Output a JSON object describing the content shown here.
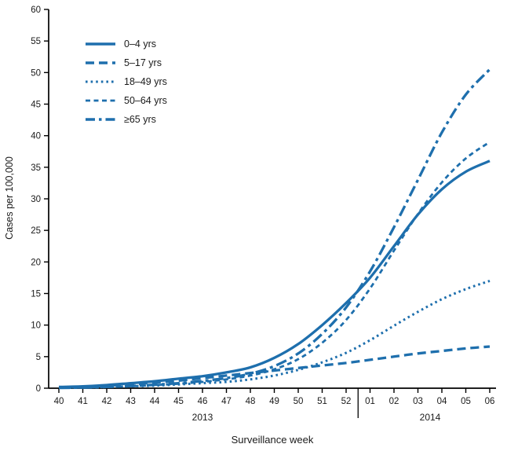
{
  "chart_data": {
    "type": "line",
    "title": "",
    "xlabel": "Surveillance week",
    "ylabel": "Cases per 100,000",
    "x_ticklabels": [
      "40",
      "41",
      "42",
      "43",
      "44",
      "45",
      "46",
      "47",
      "48",
      "49",
      "50",
      "51",
      "52",
      "01",
      "02",
      "03",
      "04",
      "05",
      "06"
    ],
    "year_groups": {
      "left": "2013",
      "right": "2014"
    },
    "ylim": [
      0,
      60
    ],
    "ytick_step": 5,
    "line_color": "#1e6fad",
    "axis_color": "#000000",
    "divider_after_index": 12,
    "legend_position": "top-left-inside",
    "grid": false,
    "series": [
      {
        "name": "0–4 yrs",
        "style": "solid",
        "values": [
          0.2,
          0.3,
          0.5,
          0.8,
          1.1,
          1.5,
          1.9,
          2.5,
          3.3,
          4.8,
          7.0,
          10.0,
          13.5,
          17.5,
          22.5,
          27.5,
          31.5,
          34.3,
          36.0
        ]
      },
      {
        "name": "5–17 yrs",
        "style": "long-dash",
        "values": [
          0.1,
          0.2,
          0.4,
          0.6,
          0.9,
          1.2,
          1.6,
          2.0,
          2.4,
          2.8,
          3.2,
          3.6,
          4.0,
          4.5,
          5.0,
          5.5,
          5.9,
          6.3,
          6.6
        ]
      },
      {
        "name": "18–49 yrs",
        "style": "dotted",
        "values": [
          0.05,
          0.1,
          0.2,
          0.3,
          0.4,
          0.6,
          0.8,
          1.0,
          1.4,
          2.0,
          2.9,
          4.1,
          5.6,
          7.6,
          9.9,
          12.1,
          14.1,
          15.7,
          17.0
        ]
      },
      {
        "name": "50–64 yrs",
        "style": "dash",
        "values": [
          0.05,
          0.1,
          0.2,
          0.3,
          0.5,
          0.7,
          1.0,
          1.4,
          2.0,
          3.0,
          4.6,
          7.2,
          10.8,
          15.8,
          21.8,
          27.6,
          32.6,
          36.4,
          39.0
        ]
      },
      {
        "name": "≥65 yrs",
        "style": "dash-dot",
        "values": [
          0.05,
          0.1,
          0.2,
          0.35,
          0.55,
          0.8,
          1.15,
          1.6,
          2.3,
          3.5,
          5.5,
          8.6,
          12.8,
          18.5,
          25.5,
          33.0,
          40.5,
          46.5,
          50.5
        ]
      }
    ]
  }
}
